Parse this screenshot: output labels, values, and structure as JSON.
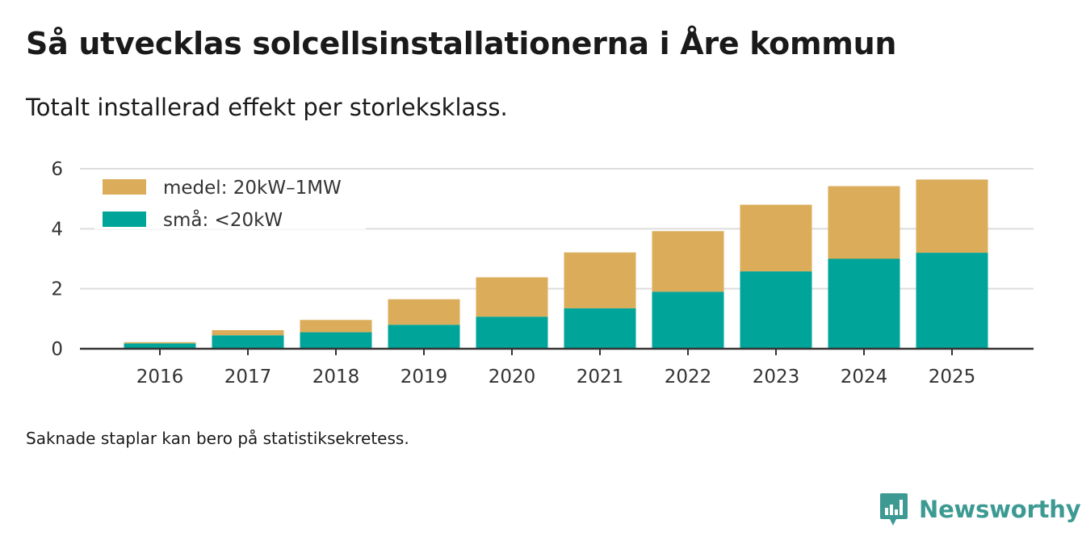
{
  "title": "Så utvecklas solcellsinstallationerna i Åre kommun",
  "subtitle": "Totalt installerad effekt per storleksklass.",
  "note": "Saknade staplar kan bero på statistiksekretess.",
  "brand": {
    "name": "Newsworthy",
    "icon": "newsworthy-logo-icon"
  },
  "colors": {
    "small": "#00a498",
    "medium": "#dbac59",
    "grid": "#dddddd",
    "axis": "#333333",
    "brand": "#3d9a93"
  },
  "chart_data": {
    "type": "bar",
    "stacked": true,
    "title": "Så utvecklas solcellsinstallationerna i Åre kommun",
    "subtitle": "Totalt installerad effekt per storleksklass.",
    "xlabel": "",
    "ylabel": "",
    "categories": [
      "2016",
      "2017",
      "2018",
      "2019",
      "2020",
      "2021",
      "2022",
      "2023",
      "2024",
      "2025"
    ],
    "series": [
      {
        "name": "små: <20kW",
        "color": "#00a498",
        "values": [
          0.18,
          0.45,
          0.55,
          0.8,
          1.07,
          1.35,
          1.9,
          2.58,
          3.0,
          3.2
        ]
      },
      {
        "name": "medel: 20kW–1MW",
        "color": "#dbac59",
        "values": [
          0.04,
          0.17,
          0.41,
          0.85,
          1.31,
          1.86,
          2.02,
          2.22,
          2.42,
          2.44
        ]
      }
    ],
    "ylim": [
      0,
      6
    ],
    "yticks": [
      "0",
      "2",
      "4",
      "6"
    ],
    "grid": true,
    "legend": {
      "placement": "top-left",
      "order": [
        "medel: 20kW–1MW",
        "små: <20kW"
      ]
    }
  }
}
